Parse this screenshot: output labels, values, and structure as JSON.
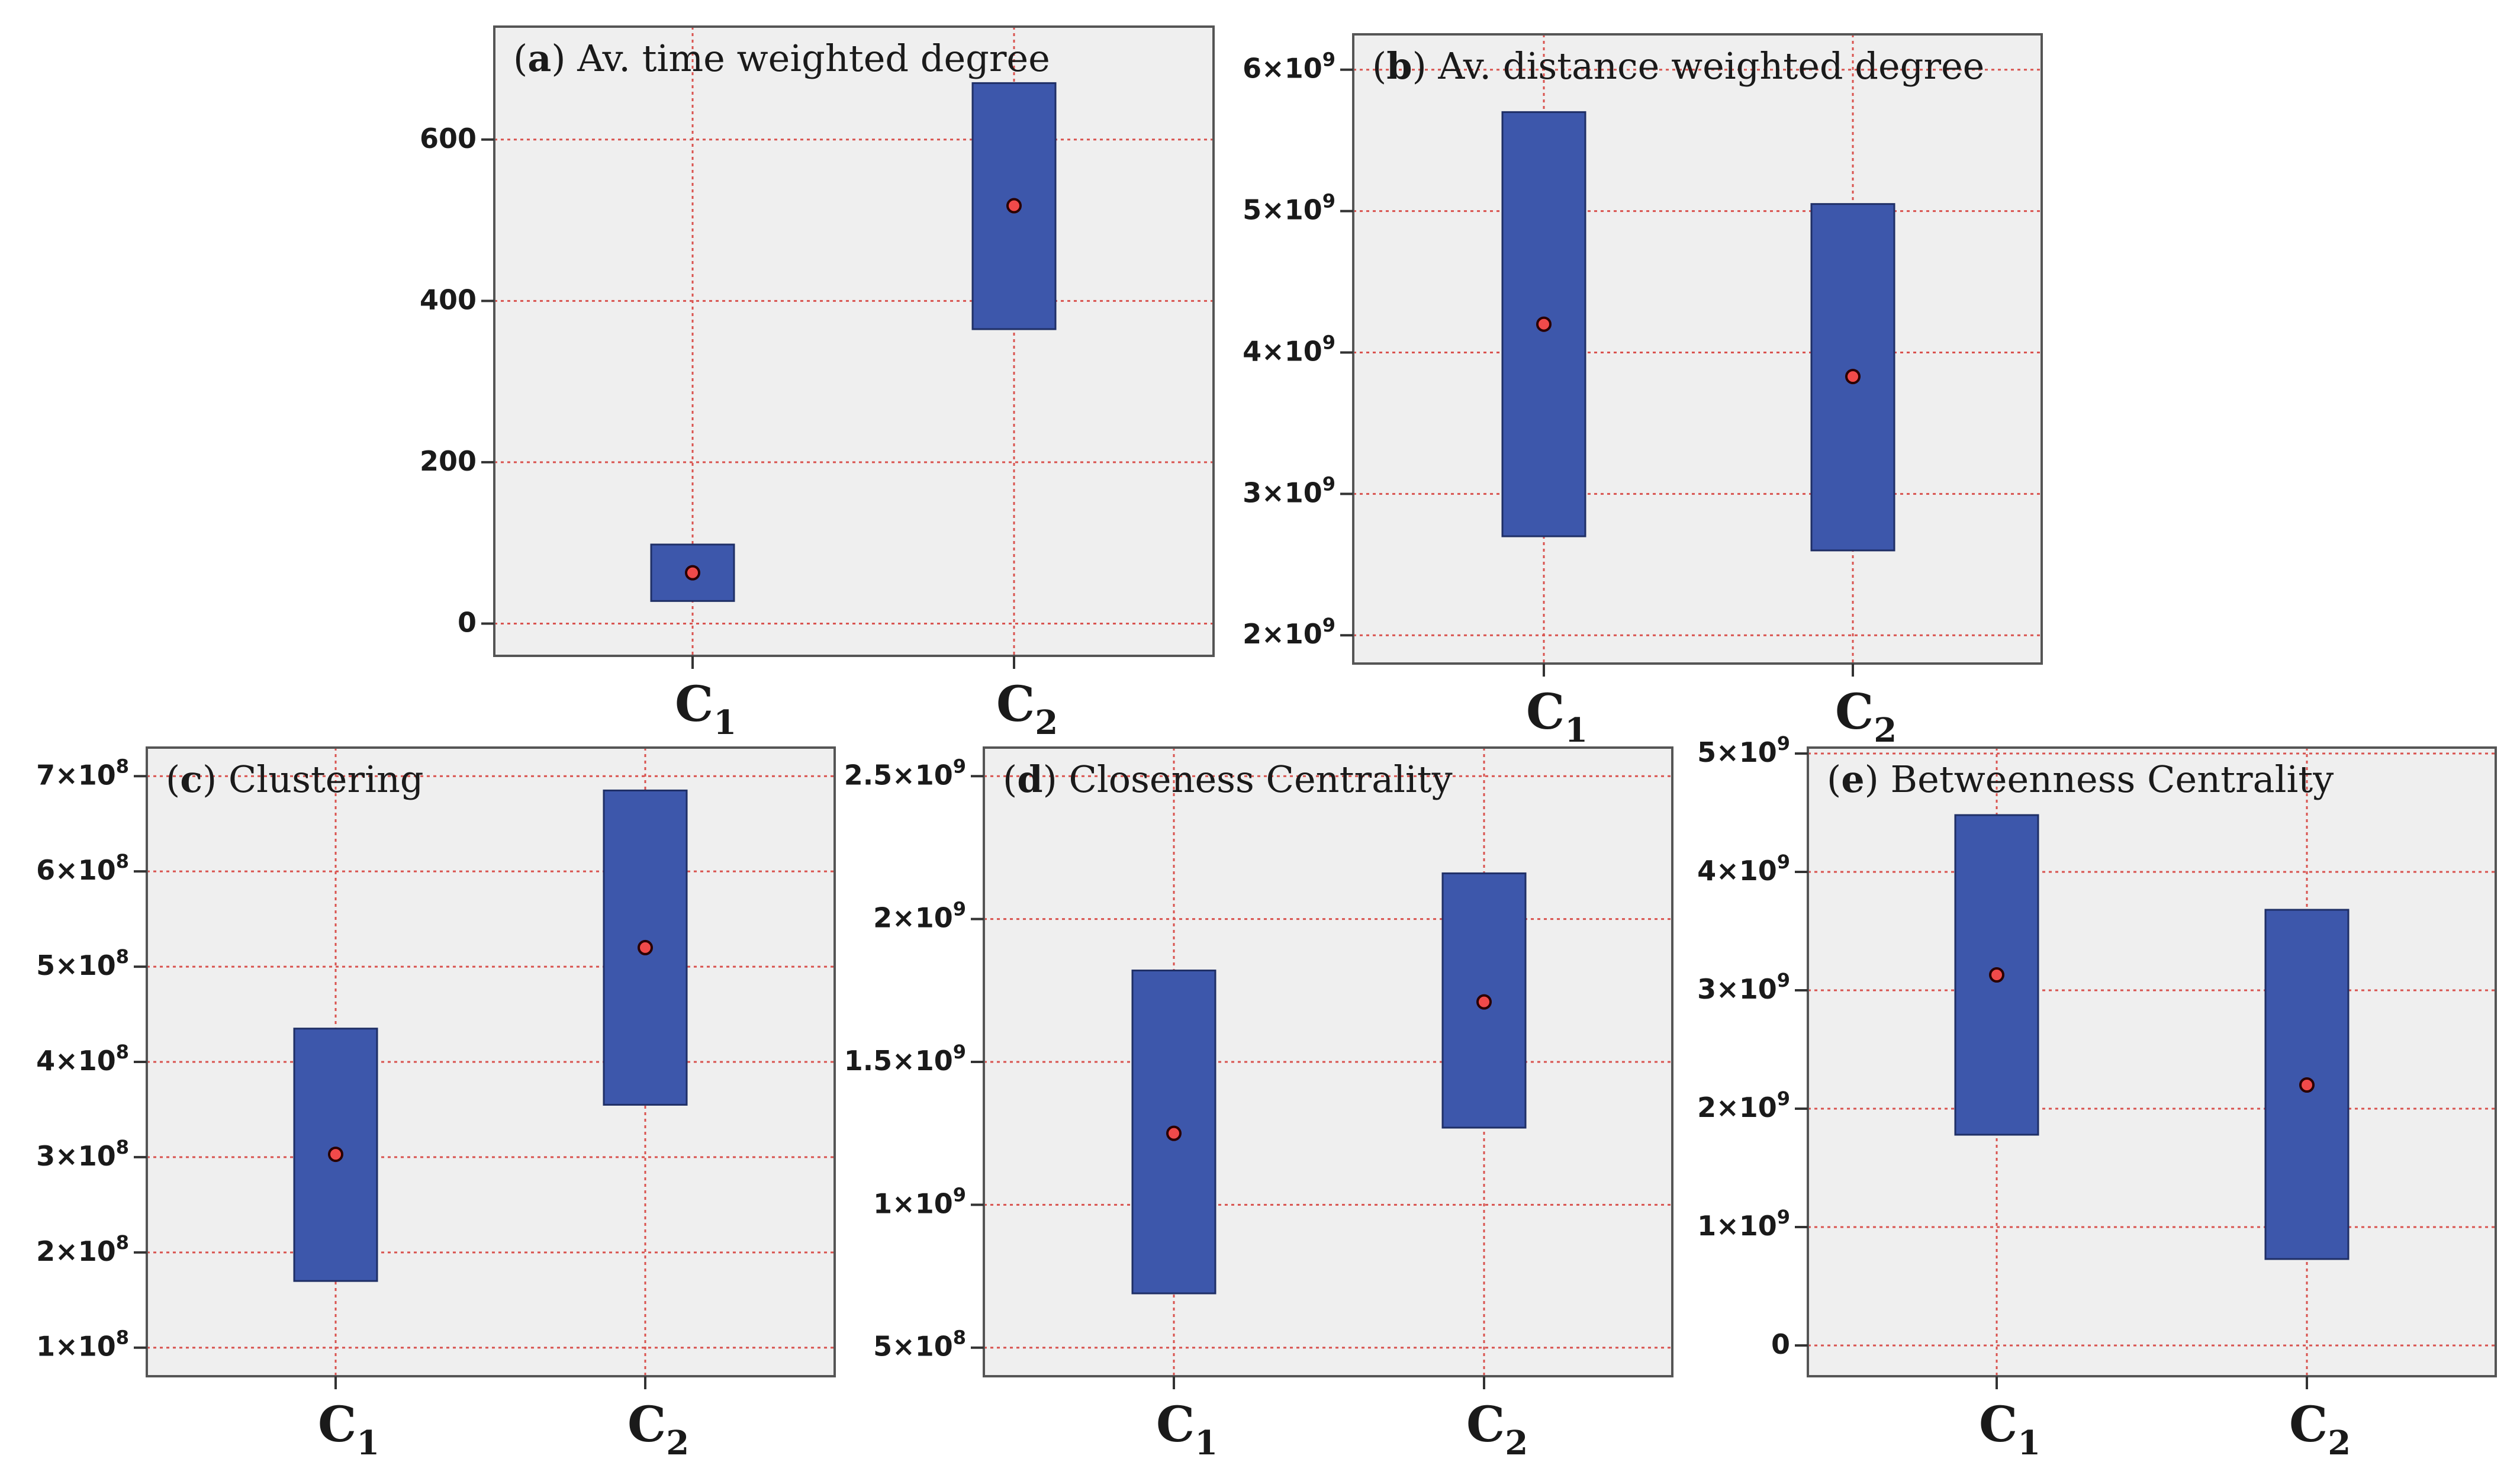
{
  "colors": {
    "panel_bg": "#efefef",
    "frame": "#555555",
    "grid": "#d9534f",
    "bar_fill": "#3d57ab",
    "bar_stroke": "#1f2f66",
    "mean_fill": "#f04a4a",
    "mean_stroke": "#2a0000"
  },
  "chart_data": [
    {
      "type": "range-bar",
      "id": "a",
      "label": "a",
      "title": "Av. time weighted degree",
      "categories": [
        "C1",
        "C2"
      ],
      "ylim": [
        -40,
        740
      ],
      "yticks": [
        0,
        200,
        400,
        600
      ],
      "ytick_labels": [
        "0",
        "200",
        "400",
        "600"
      ],
      "series": [
        {
          "category": "C1",
          "low": 28,
          "high": 98,
          "mean": 63
        },
        {
          "category": "C2",
          "low": 365,
          "high": 670,
          "mean": 518
        }
      ]
    },
    {
      "type": "range-bar",
      "id": "b",
      "label": "b",
      "title": "Av. distance weighted degree",
      "categories": [
        "C1",
        "C2"
      ],
      "ylim": [
        1800000000,
        6250000000
      ],
      "yticks": [
        2000000000,
        3000000000,
        4000000000,
        5000000000,
        6000000000
      ],
      "ytick_labels": [
        "2×10",
        "3×10",
        "4×10",
        "5×10",
        "6×10"
      ],
      "ytick_exponents": [
        "9",
        "9",
        "9",
        "9",
        "9"
      ],
      "series": [
        {
          "category": "C1",
          "low": 2700000000,
          "high": 5700000000,
          "mean": 4200000000
        },
        {
          "category": "C2",
          "low": 2600000000,
          "high": 5050000000,
          "mean": 3830000000
        }
      ]
    },
    {
      "type": "range-bar",
      "id": "c",
      "label": "c",
      "title": "Clustering",
      "categories": [
        "C1",
        "C2"
      ],
      "ylim": [
        70000000,
        730000000
      ],
      "yticks": [
        100000000,
        200000000,
        300000000,
        400000000,
        500000000,
        600000000,
        700000000
      ],
      "ytick_labels": [
        "1×10",
        "2×10",
        "3×10",
        "4×10",
        "5×10",
        "6×10",
        "7×10"
      ],
      "ytick_exponents": [
        "8",
        "8",
        "8",
        "8",
        "8",
        "8",
        "8"
      ],
      "series": [
        {
          "category": "C1",
          "low": 170000000,
          "high": 435000000,
          "mean": 303000000
        },
        {
          "category": "C2",
          "low": 355000000,
          "high": 685000000,
          "mean": 520000000
        }
      ]
    },
    {
      "type": "range-bar",
      "id": "d",
      "label": "d",
      "title": "Closeness Centrality",
      "categories": [
        "C1",
        "C2"
      ],
      "ylim": [
        400000000,
        2600000000
      ],
      "yticks": [
        500000000,
        1000000000,
        1500000000,
        2000000000,
        2500000000
      ],
      "ytick_labels": [
        "5×10",
        "1×10",
        "1.5×10",
        "2×10",
        "2.5×10"
      ],
      "ytick_exponents": [
        "8",
        "9",
        "9",
        "9",
        "9"
      ],
      "series": [
        {
          "category": "C1",
          "low": 690000000,
          "high": 1820000000,
          "mean": 1250000000
        },
        {
          "category": "C2",
          "low": 1270000000,
          "high": 2160000000,
          "mean": 1710000000
        }
      ]
    },
    {
      "type": "range-bar",
      "id": "e",
      "label": "e",
      "title": "Betweenness Centrality",
      "categories": [
        "C1",
        "C2"
      ],
      "ylim": [
        -260000000,
        5050000000
      ],
      "yticks": [
        0,
        1000000000,
        2000000000,
        3000000000,
        4000000000,
        5000000000
      ],
      "ytick_labels": [
        "0",
        "1×10",
        "2×10",
        "3×10",
        "4×10",
        "5×10"
      ],
      "ytick_exponents": [
        "",
        "9",
        "9",
        "9",
        "9",
        "9"
      ],
      "series": [
        {
          "category": "C1",
          "low": 1780000000,
          "high": 4480000000,
          "mean": 3130000000
        },
        {
          "category": "C2",
          "low": 730000000,
          "high": 3680000000,
          "mean": 2200000000
        }
      ]
    }
  ]
}
